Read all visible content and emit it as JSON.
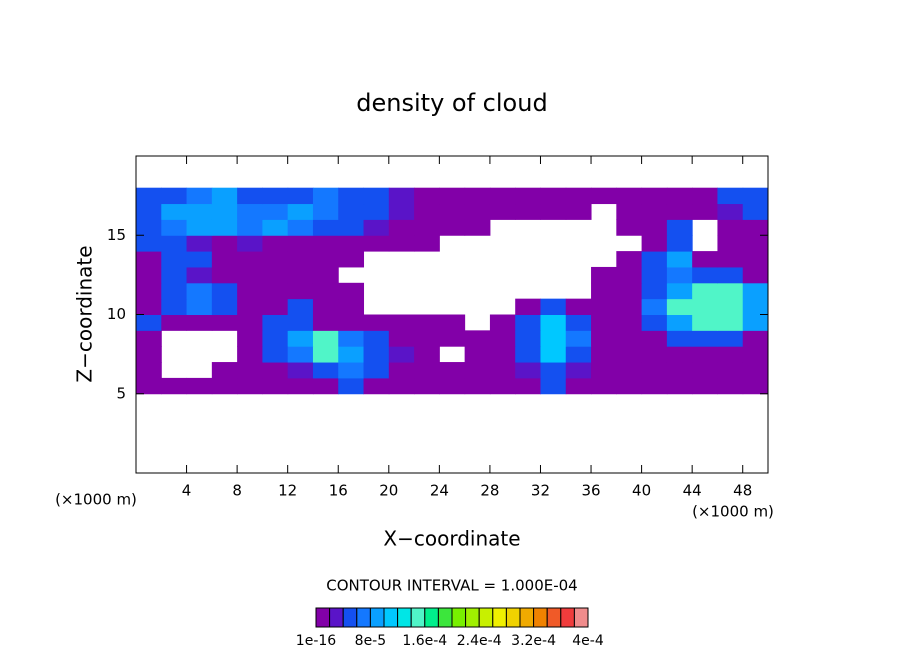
{
  "chart_data": {
    "type": "heatmap",
    "title": "density of cloud",
    "xlabel": "X−coordinate",
    "ylabel": "Z−coordinate",
    "x_unit_labels": [
      "(×1000 m)",
      "(×1000 m)"
    ],
    "contour_label": "CONTOUR INTERVAL = 1.000E-04",
    "xlim": [
      0,
      50
    ],
    "ylim": [
      0,
      20
    ],
    "xticks": [
      4,
      8,
      12,
      16,
      20,
      24,
      28,
      32,
      36,
      40,
      44,
      48
    ],
    "yticks": [
      5,
      10,
      15
    ],
    "x": [
      1,
      3,
      5,
      7,
      9,
      11,
      13,
      15,
      17,
      19,
      21,
      23,
      25,
      27,
      29,
      31,
      33,
      35,
      37,
      39,
      41,
      43,
      45,
      47,
      49
    ],
    "y": [
      5.5,
      6.5,
      7.5,
      8.5,
      9.5,
      10.5,
      11.5,
      12.5,
      13.5,
      14.5,
      15.5,
      16.5,
      17.5
    ],
    "z": [
      [
        1e-05,
        1e-05,
        1e-05,
        1e-05,
        1e-05,
        1e-05,
        1e-05,
        1e-05,
        5e-05,
        1e-05,
        1e-05,
        1e-05,
        1e-05,
        1e-05,
        1e-05,
        1e-05,
        5e-05,
        1e-05,
        1e-05,
        1e-05,
        1e-05,
        1e-05,
        1e-05,
        1e-05,
        1e-05
      ],
      [
        1e-05,
        null,
        null,
        1e-05,
        1e-05,
        1e-05,
        3e-05,
        5e-05,
        7e-05,
        5e-05,
        1e-05,
        1e-05,
        1e-05,
        1e-05,
        1e-05,
        3e-05,
        5e-05,
        3e-05,
        1e-05,
        1e-05,
        1e-05,
        1e-05,
        1e-05,
        1e-05,
        1e-05
      ],
      [
        1e-05,
        null,
        null,
        null,
        1e-05,
        5e-05,
        7e-05,
        0.00015,
        9e-05,
        5e-05,
        3e-05,
        1e-05,
        null,
        1e-05,
        1e-05,
        5e-05,
        0.00011,
        5e-05,
        1e-05,
        1e-05,
        1e-05,
        1e-05,
        1e-05,
        1e-05,
        1e-05
      ],
      [
        1e-05,
        null,
        null,
        null,
        1e-05,
        5e-05,
        9e-05,
        0.00015,
        7e-05,
        5e-05,
        1e-05,
        1e-05,
        1e-05,
        1e-05,
        1e-05,
        5e-05,
        0.00011,
        7e-05,
        1e-05,
        1e-05,
        1e-05,
        5e-05,
        5e-05,
        5e-05,
        1e-05
      ],
      [
        5e-05,
        1e-05,
        1e-05,
        1e-05,
        1e-05,
        5e-05,
        5e-05,
        1e-05,
        1e-05,
        1e-05,
        1e-05,
        1e-05,
        1e-05,
        null,
        1e-05,
        5e-05,
        0.00011,
        5e-05,
        1e-05,
        1e-05,
        5e-05,
        9e-05,
        0.00015,
        0.00015,
        9e-05
      ],
      [
        1e-05,
        5e-05,
        7e-05,
        5e-05,
        1e-05,
        1e-05,
        5e-05,
        1e-05,
        1e-05,
        null,
        null,
        null,
        null,
        null,
        null,
        1e-05,
        5e-05,
        1e-05,
        1e-05,
        1e-05,
        7e-05,
        0.00015,
        0.00015,
        0.00015,
        9e-05
      ],
      [
        1e-05,
        5e-05,
        7e-05,
        5e-05,
        1e-05,
        1e-05,
        1e-05,
        1e-05,
        1e-05,
        null,
        null,
        null,
        null,
        null,
        null,
        null,
        null,
        null,
        1e-05,
        1e-05,
        5e-05,
        9e-05,
        0.00015,
        0.00015,
        9e-05
      ],
      [
        1e-05,
        5e-05,
        3e-05,
        1e-05,
        1e-05,
        1e-05,
        1e-05,
        1e-05,
        null,
        null,
        null,
        null,
        null,
        null,
        null,
        null,
        null,
        null,
        1e-05,
        1e-05,
        5e-05,
        7e-05,
        5e-05,
        5e-05,
        1e-05
      ],
      [
        1e-05,
        5e-05,
        5e-05,
        1e-05,
        1e-05,
        1e-05,
        1e-05,
        1e-05,
        1e-05,
        null,
        null,
        null,
        null,
        null,
        null,
        null,
        null,
        null,
        null,
        1e-05,
        5e-05,
        9e-05,
        1e-05,
        1e-05,
        1e-05
      ],
      [
        5e-05,
        5e-05,
        3e-05,
        1e-05,
        3e-05,
        1e-05,
        1e-05,
        1e-05,
        1e-05,
        1e-05,
        1e-05,
        1e-05,
        null,
        null,
        null,
        null,
        null,
        null,
        null,
        null,
        1e-05,
        5e-05,
        null,
        1e-05,
        1e-05
      ],
      [
        5e-05,
        7e-05,
        9e-05,
        9e-05,
        7e-05,
        9e-05,
        7e-05,
        5e-05,
        5e-05,
        3e-05,
        1e-05,
        1e-05,
        1e-05,
        1e-05,
        null,
        null,
        null,
        null,
        null,
        1e-05,
        1e-05,
        5e-05,
        null,
        1e-05,
        1e-05
      ],
      [
        5e-05,
        9e-05,
        9e-05,
        9e-05,
        7e-05,
        7e-05,
        9e-05,
        7e-05,
        5e-05,
        5e-05,
        3e-05,
        1e-05,
        1e-05,
        1e-05,
        1e-05,
        1e-05,
        1e-05,
        1e-05,
        null,
        1e-05,
        1e-05,
        1e-05,
        1e-05,
        3e-05,
        5e-05
      ],
      [
        5e-05,
        5e-05,
        7e-05,
        9e-05,
        5e-05,
        5e-05,
        5e-05,
        7e-05,
        5e-05,
        5e-05,
        3e-05,
        1e-05,
        1e-05,
        1e-05,
        1e-05,
        1e-05,
        1e-05,
        1e-05,
        1e-05,
        1e-05,
        1e-05,
        1e-05,
        1e-05,
        5e-05,
        5e-05
      ]
    ],
    "levels": [
      1e-16,
      2e-05,
      4e-05,
      6e-05,
      8e-05,
      0.0001,
      0.00012,
      0.00014,
      0.00016,
      0.00018,
      0.0002,
      0.00022,
      0.00024,
      0.00026,
      0.00028,
      0.0003,
      0.00032,
      0.00034,
      0.00036,
      0.00038,
      0.0004
    ],
    "colors": [
      "#8200a8",
      "#5a14c8",
      "#1450f0",
      "#1478ff",
      "#0aa0ff",
      "#00c8ff",
      "#00e6e6",
      "#50f5c8",
      "#00f08c",
      "#3ce63c",
      "#78f000",
      "#a0f000",
      "#c8f000",
      "#f0f000",
      "#f0d200",
      "#f0aa00",
      "#f08200",
      "#f05a28",
      "#f03c3c",
      "#f08c8c"
    ],
    "colorbar_ticks": [
      1e-16,
      {
        "value": 8e-05,
        "label": "8e-5"
      },
      {
        "value": 0.00016,
        "label": "1.6e-4"
      },
      {
        "value": 0.00024,
        "label": "2.4e-4"
      },
      {
        "value": 0.00032,
        "label": "3.2e-4"
      },
      {
        "value": 0.0004,
        "label": "4e-4"
      }
    ]
  }
}
